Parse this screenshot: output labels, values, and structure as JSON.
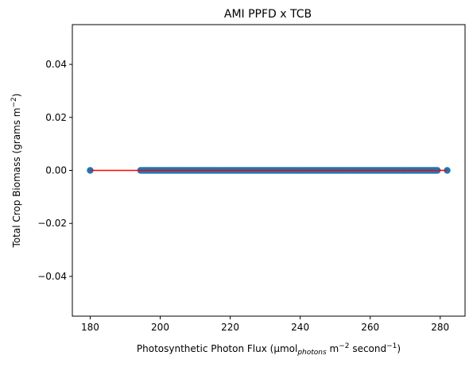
{
  "chart_data": {
    "type": "scatter",
    "title": "AMI PPFD x TCB",
    "xlabel": {
      "main": "Photosynthetic Photon Flux (µmol",
      "subscript": "photons",
      "unit_a": " m",
      "exp_a": "−2",
      "unit_b": " second",
      "exp_b": "−1",
      "close": ")"
    },
    "ylabel": {
      "main": "Total Crop Biomass (grams m",
      "exp": "−2",
      "close": ")"
    },
    "xlim": [
      174.9,
      287.1
    ],
    "ylim": [
      -0.055,
      0.055
    ],
    "xticks": [
      180,
      200,
      220,
      240,
      260,
      280
    ],
    "xtick_labels": [
      "180",
      "200",
      "220",
      "240",
      "260",
      "280"
    ],
    "yticks": [
      0.04,
      0.02,
      0.0,
      -0.02,
      -0.04
    ],
    "ytick_labels": [
      "0.04",
      "0.02",
      "0.00",
      "−0.02",
      "−0.04"
    ],
    "scatter_color": "#1f77b4",
    "line_color": "#ff0000",
    "points": {
      "x_isolated": [
        180,
        282
      ],
      "x_range_dense": [
        194.4,
        279.2
      ],
      "y": 0.0
    },
    "fit_line": {
      "x": [
        180,
        282
      ],
      "y": [
        0.0,
        0.0
      ]
    }
  }
}
